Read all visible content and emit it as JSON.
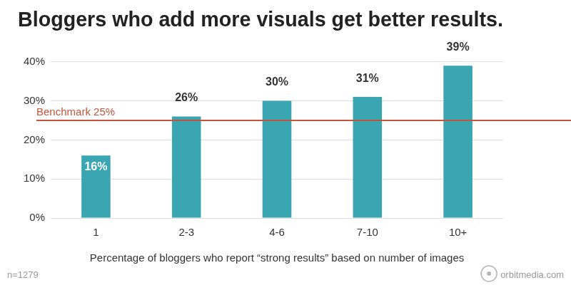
{
  "chart_data": {
    "type": "bar",
    "title": "Bloggers who add more visuals get better results.",
    "x_label": "Percentage of bloggers who report “strong results” based on number of images",
    "categories": [
      "1",
      "2-3",
      "4-6",
      "7-10",
      "10+"
    ],
    "values": [
      16,
      26,
      30,
      31,
      39
    ],
    "value_labels": [
      "16%",
      "26%",
      "30%",
      "31%",
      "39%"
    ],
    "data_labels": true,
    "color": "#3aa6b2",
    "ylim": [
      0,
      40
    ],
    "yticks": [
      {
        "value": 0,
        "label": "0%"
      },
      {
        "value": 10,
        "label": "10%"
      },
      {
        "value": 20,
        "label": "20%"
      },
      {
        "value": 30,
        "label": "30%"
      },
      {
        "value": 40,
        "label": "40%"
      }
    ],
    "grid": true,
    "reference_line": {
      "value": 25,
      "label": "Benchmark 25%",
      "color": "#c4553b"
    },
    "footnote": "n=1279",
    "source": "orbitmedia.com"
  }
}
